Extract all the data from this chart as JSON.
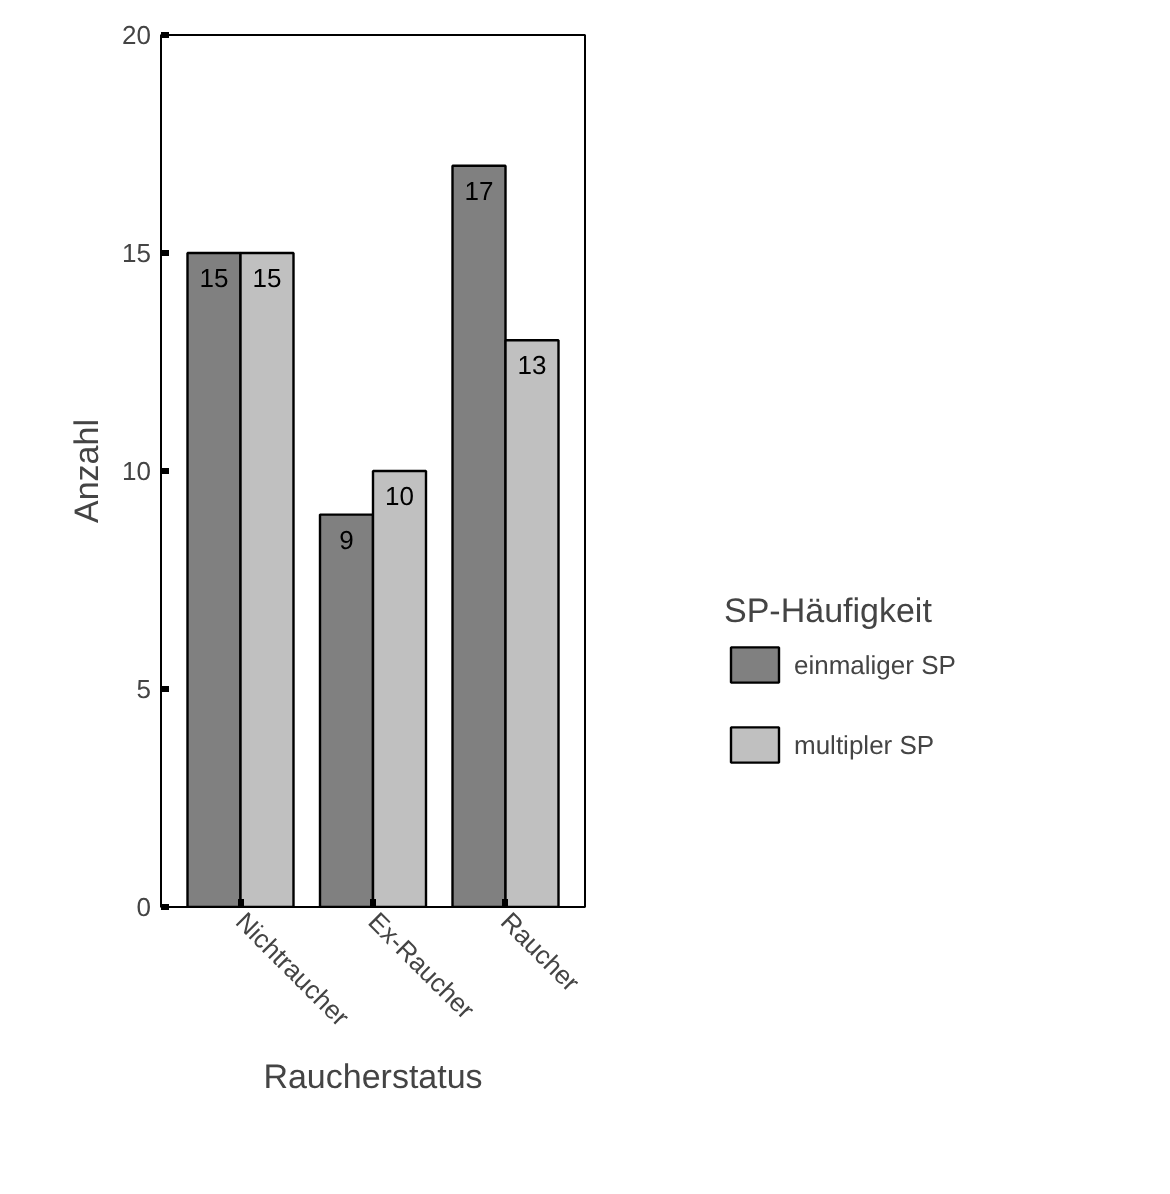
{
  "chart_data": {
    "type": "bar",
    "xlabel": "Raucherstatus",
    "ylabel": "Anzahl",
    "legend_title": "SP-Häufigkeit",
    "categories": [
      "Nichtraucher",
      "Ex-Raucher",
      "Raucher"
    ],
    "series": [
      {
        "name": "einmaliger SP",
        "color": "#808080",
        "values": [
          15,
          9,
          17
        ]
      },
      {
        "name": "multipler SP",
        "color": "#c0c0c0",
        "values": [
          15,
          10,
          13
        ]
      }
    ],
    "ylim": [
      0,
      20
    ],
    "yticks": [
      0,
      5,
      10,
      15,
      20
    ],
    "data_labels": true,
    "grid": false,
    "legend": "right"
  }
}
